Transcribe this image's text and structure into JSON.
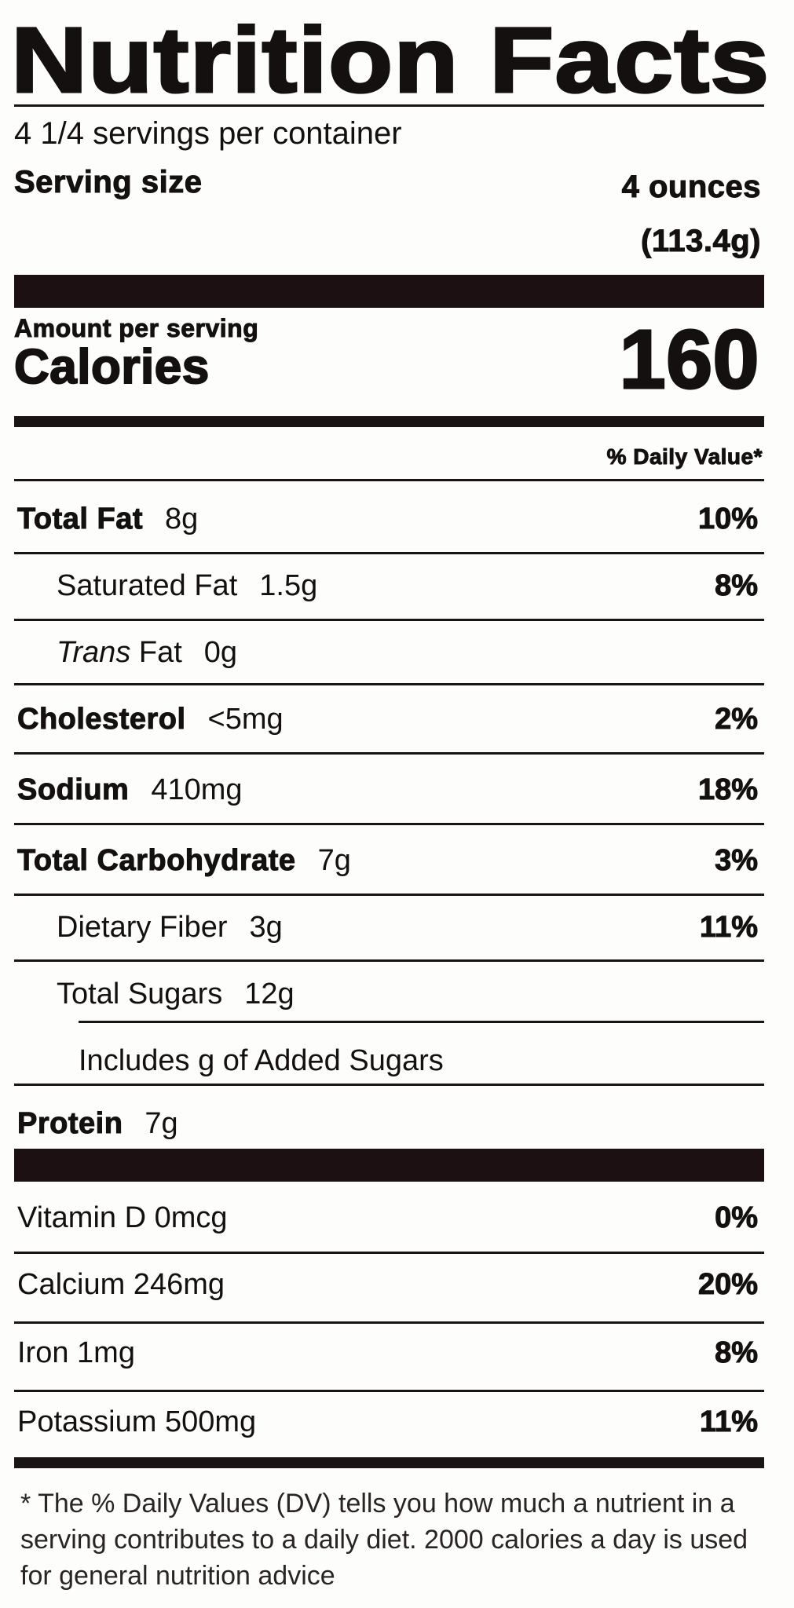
{
  "title": "Nutrition Facts",
  "servings_per_container": "4 1/4 servings per container",
  "serving_size": {
    "label": "Serving size",
    "value": "4 ounces",
    "grams": "(113.4g)"
  },
  "amount_per_serving": "Amount per serving",
  "calories": {
    "label": "Calories",
    "value": "160"
  },
  "daily_value_header": "% Daily Value*",
  "nutrients": [
    {
      "label": "Total Fat",
      "amount": "8g",
      "dv": "10%"
    },
    {
      "label": "Saturated Fat",
      "amount": "1.5g",
      "dv": "8%"
    },
    {
      "label_italic": "Trans",
      "label": " Fat",
      "amount": "0g",
      "dv": ""
    },
    {
      "label": "Cholesterol",
      "amount": "<5mg",
      "dv": "2%"
    },
    {
      "label": "Sodium",
      "amount": "410mg",
      "dv": "18%"
    },
    {
      "label": "Total Carbohydrate",
      "amount": "7g",
      "dv": "3%"
    },
    {
      "label": "Dietary Fiber",
      "amount": "3g",
      "dv": "11%"
    },
    {
      "label": "Total Sugars",
      "amount": "12g",
      "dv": ""
    },
    {
      "label": "Includes g of Added Sugars",
      "amount": "",
      "dv": ""
    },
    {
      "label": "Protein",
      "amount": "7g",
      "dv": ""
    }
  ],
  "vitamins": [
    {
      "label": "Vitamin D 0mcg",
      "dv": "0%"
    },
    {
      "label": "Calcium 246mg",
      "dv": "20%"
    },
    {
      "label": "Iron 1mg",
      "dv": "8%"
    },
    {
      "label": "Potassium 500mg",
      "dv": "11%"
    }
  ],
  "footnote": "* The % Daily Values (DV) tells you how much a nutrient in a serving contributes to a daily diet. 2000 calories a day is used for general nutrition advice"
}
